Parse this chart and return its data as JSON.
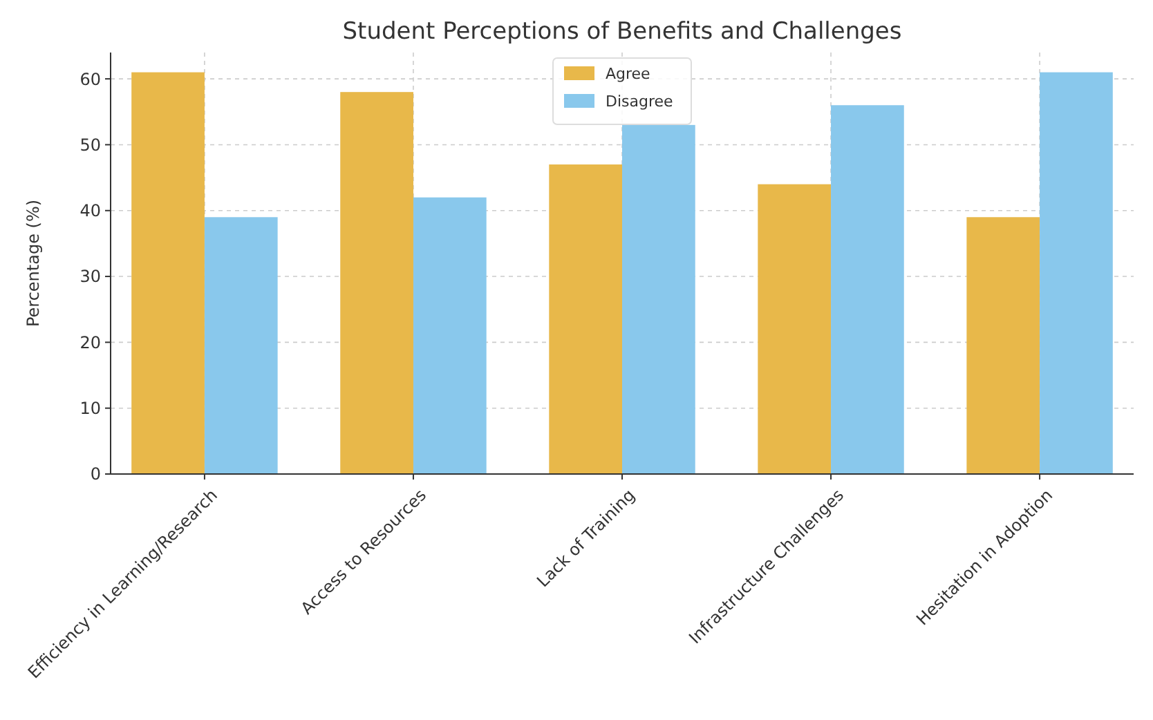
{
  "chart_data": {
    "type": "bar",
    "title": "Student Perceptions of Benefits and Challenges",
    "ylabel": "Percentage (%)",
    "categories": [
      "Efficiency in Learning/Research",
      "Access to Resources",
      "Lack of Training",
      "Infrastructure Challenges",
      "Hesitation in Adoption"
    ],
    "series": [
      {
        "name": "Agree",
        "color": "#e8b84a",
        "values": [
          61,
          58,
          47,
          44,
          39
        ]
      },
      {
        "name": "Disagree",
        "color": "#89c8ec",
        "values": [
          39,
          42,
          53,
          56,
          61
        ]
      }
    ],
    "ylim": [
      0,
      64
    ],
    "yticks": [
      0,
      10,
      20,
      30,
      40,
      50,
      60
    ],
    "grid": true,
    "legend": "top"
  }
}
